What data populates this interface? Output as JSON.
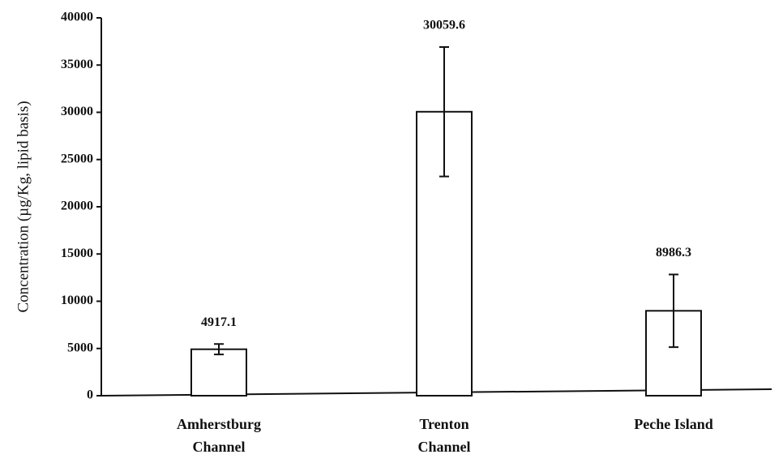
{
  "chart_data": {
    "type": "bar",
    "ylabel": "Concentration (µg/Kg, lipid basis)",
    "categories": [
      [
        "Amherstburg",
        "Channel"
      ],
      [
        "Trenton",
        "Channel"
      ],
      [
        "Peche Island"
      ]
    ],
    "values": [
      4917.1,
      30059.6,
      8986.3
    ],
    "errors": [
      550,
      6850,
      3850
    ],
    "color": "#ffffff",
    "ylim": [
      0,
      40000
    ],
    "yticks": [
      0,
      5000,
      10000,
      15000,
      20000,
      25000,
      30000,
      35000,
      40000
    ],
    "grid": false
  }
}
